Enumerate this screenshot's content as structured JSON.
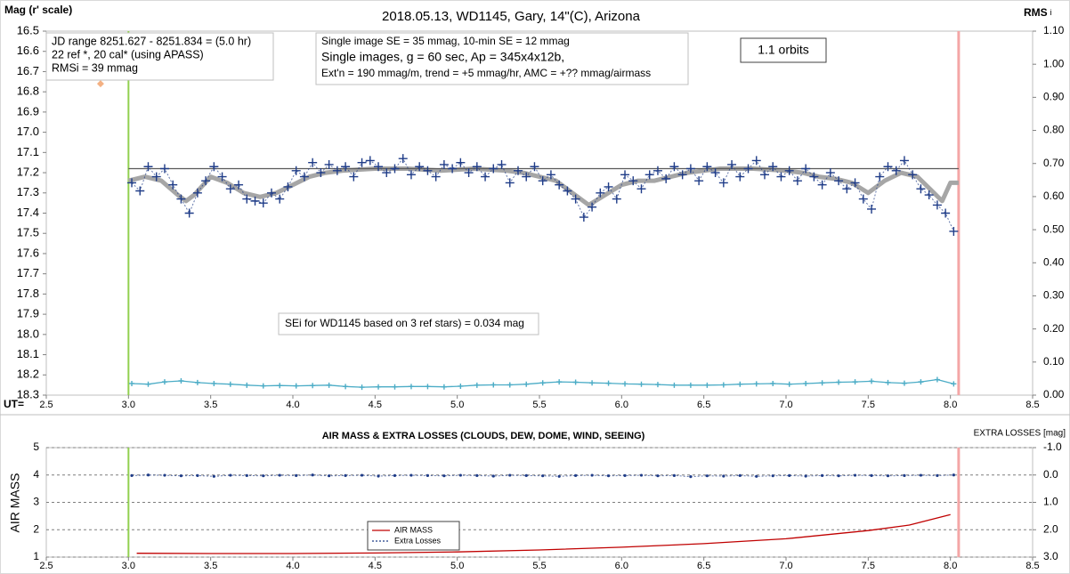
{
  "chart_data": [
    {
      "type": "scatter",
      "title": "2018.05.13,  WD1145, Gary, 14\"(C), Arizona",
      "y_label": "Mag (r' scale)",
      "y2_label": "RMS",
      "y2_label_sub": "i",
      "x_label": "UT=",
      "xlim": [
        2.5,
        8.5
      ],
      "xticks": [
        2.5,
        {
          "value": 3,
          "label": "3.0"
        },
        3.5,
        {
          "value": 4,
          "label": "4.0"
        },
        4.5,
        {
          "value": 5,
          "label": "5.0"
        },
        5.5,
        {
          "value": 6,
          "label": "6.0"
        },
        6.5,
        {
          "value": 7,
          "label": "7.0"
        },
        7.5,
        {
          "value": 8,
          "label": "8.0"
        },
        8.5
      ],
      "ylim": [
        18.3,
        16.5
      ],
      "yticks": [
        16.5,
        16.6,
        16.7,
        16.8,
        16.9,
        {
          "value": 17,
          "label": "17.0"
        },
        17.1,
        17.2,
        17.3,
        17.4,
        17.5,
        17.6,
        17.7,
        17.8,
        17.9,
        {
          "value": 18,
          "label": "18.0"
        },
        18.1,
        18.2,
        18.3
      ],
      "y2lim": [
        0,
        1.1
      ],
      "y2ticks": [
        {
          "value": 0,
          "label": "0.00"
        },
        {
          "value": 0.1,
          "label": "0.10"
        },
        {
          "value": 0.2,
          "label": "0.20"
        },
        {
          "value": 0.3,
          "label": "0.30"
        },
        {
          "value": 0.4,
          "label": "0.40"
        },
        {
          "value": 0.5,
          "label": "0.50"
        },
        {
          "value": 0.6,
          "label": "0.60"
        },
        {
          "value": 0.7,
          "label": "0.70"
        },
        {
          "value": 0.8,
          "label": "0.80"
        },
        {
          "value": 0.9,
          "label": "0.90"
        },
        {
          "value": 1,
          "label": "1.00"
        },
        {
          "value": 1.1,
          "label": "1.10"
        }
      ],
      "grid": false,
      "vlines": [
        {
          "x": 3.0,
          "color": "#92d050"
        },
        {
          "x": 8.05,
          "color": "#f4a6a6"
        }
      ],
      "annotations": {
        "info": [
          "JD range  8251.627 - 8251.834  = (5.0 hr)",
          "22 ref *, 20 cal* (using APASS)",
          "RMSi = 39 mmag"
        ],
        "setup": [
          "Single image SE = 35 mmag, 10-min SE = 12 mmag",
          "Single images, g = 60 sec, Ap = 345x4x12b,",
          "Ext'n = 190 mmag/m, trend = +5 mmag/hr, AMC = +?? mmag/airmass"
        ],
        "orbits": "1.1 orbits",
        "sei": "SEi for WD1145 based on 3 ref stars) = 0.034 mag"
      },
      "series": [
        {
          "color": "#a6a6a6",
          "marker": "none",
          "line": "thick",
          "x": [
            3.0,
            3.1,
            3.2,
            3.3,
            3.35,
            3.4,
            3.5,
            3.6,
            3.7,
            3.8,
            3.9,
            4.0,
            4.1,
            4.2,
            4.3,
            4.5,
            4.7,
            4.9,
            5.1,
            5.3,
            5.4,
            5.5,
            5.6,
            5.7,
            5.8,
            5.9,
            6.0,
            6.1,
            6.2,
            6.3,
            6.4,
            6.5,
            6.6,
            6.8,
            7.0,
            7.1,
            7.2,
            7.3,
            7.4,
            7.5,
            7.6,
            7.7,
            7.8,
            7.9,
            7.95,
            8.0,
            8.05
          ],
          "values": [
            17.24,
            17.22,
            17.24,
            17.31,
            17.34,
            17.31,
            17.22,
            17.25,
            17.3,
            17.32,
            17.3,
            17.26,
            17.22,
            17.2,
            17.19,
            17.18,
            17.18,
            17.19,
            17.18,
            17.19,
            17.2,
            17.22,
            17.24,
            17.3,
            17.36,
            17.31,
            17.26,
            17.24,
            17.24,
            17.22,
            17.2,
            17.19,
            17.18,
            17.18,
            17.19,
            17.2,
            17.22,
            17.23,
            17.25,
            17.3,
            17.24,
            17.2,
            17.22,
            17.3,
            17.34,
            17.25,
            17.25
          ]
        },
        {
          "color": "#595959",
          "marker": "none",
          "line": "solid",
          "x": [
            3.0,
            8.05
          ],
          "values": [
            17.18,
            17.18
          ]
        },
        {
          "color": "#1f3c88",
          "marker": "plus",
          "line": "dotted",
          "x": [
            3.02,
            3.07,
            3.12,
            3.17,
            3.22,
            3.27,
            3.32,
            3.37,
            3.42,
            3.47,
            3.52,
            3.57,
            3.62,
            3.67,
            3.72,
            3.77,
            3.82,
            3.87,
            3.92,
            3.97,
            4.02,
            4.07,
            4.12,
            4.17,
            4.22,
            4.27,
            4.32,
            4.37,
            4.42,
            4.47,
            4.52,
            4.57,
            4.62,
            4.67,
            4.72,
            4.77,
            4.82,
            4.87,
            4.92,
            4.97,
            5.02,
            5.07,
            5.12,
            5.17,
            5.22,
            5.27,
            5.32,
            5.37,
            5.42,
            5.47,
            5.52,
            5.57,
            5.62,
            5.67,
            5.72,
            5.77,
            5.82,
            5.87,
            5.92,
            5.97,
            6.02,
            6.07,
            6.12,
            6.17,
            6.22,
            6.27,
            6.32,
            6.37,
            6.42,
            6.47,
            6.52,
            6.57,
            6.62,
            6.67,
            6.72,
            6.77,
            6.82,
            6.87,
            6.92,
            6.97,
            7.02,
            7.07,
            7.12,
            7.17,
            7.22,
            7.27,
            7.32,
            7.37,
            7.42,
            7.47,
            7.52,
            7.57,
            7.62,
            7.67,
            7.72,
            7.77,
            7.82,
            7.87,
            7.92,
            7.97,
            8.02
          ],
          "values": [
            17.25,
            17.29,
            17.17,
            17.22,
            17.18,
            17.26,
            17.33,
            17.4,
            17.3,
            17.24,
            17.17,
            17.22,
            17.28,
            17.26,
            17.33,
            17.34,
            17.35,
            17.3,
            17.33,
            17.27,
            17.19,
            17.22,
            17.15,
            17.2,
            17.16,
            17.19,
            17.17,
            17.22,
            17.15,
            17.14,
            17.17,
            17.2,
            17.18,
            17.13,
            17.21,
            17.17,
            17.19,
            17.22,
            17.16,
            17.18,
            17.15,
            17.2,
            17.17,
            17.22,
            17.18,
            17.16,
            17.25,
            17.19,
            17.22,
            17.17,
            17.24,
            17.21,
            17.26,
            17.29,
            17.33,
            17.42,
            17.37,
            17.3,
            17.27,
            17.33,
            17.21,
            17.24,
            17.28,
            17.21,
            17.19,
            17.23,
            17.17,
            17.21,
            17.18,
            17.24,
            17.17,
            17.2,
            17.25,
            17.16,
            17.22,
            17.18,
            17.14,
            17.21,
            17.17,
            17.22,
            17.19,
            17.24,
            17.18,
            17.22,
            17.26,
            17.2,
            17.24,
            17.28,
            17.25,
            17.33,
            17.38,
            17.22,
            17.17,
            17.19,
            17.14,
            17.21,
            17.28,
            17.31,
            17.36,
            17.4,
            17.49
          ]
        },
        {
          "color": "#f4b183",
          "marker": "diamond",
          "line": "none",
          "x": [
            2.83
          ],
          "values": [
            16.76
          ]
        },
        {
          "color": "#4bacc6",
          "marker": "small-plus",
          "line": "solid",
          "axis": "y2",
          "x": [
            3.02,
            3.12,
            3.22,
            3.32,
            3.42,
            3.52,
            3.62,
            3.72,
            3.82,
            3.92,
            4.02,
            4.12,
            4.22,
            4.32,
            4.42,
            4.52,
            4.62,
            4.72,
            4.82,
            4.92,
            5.02,
            5.12,
            5.22,
            5.32,
            5.42,
            5.52,
            5.62,
            5.72,
            5.82,
            5.92,
            6.02,
            6.12,
            6.22,
            6.32,
            6.42,
            6.52,
            6.62,
            6.72,
            6.82,
            6.92,
            7.02,
            7.12,
            7.22,
            7.32,
            7.42,
            7.52,
            7.62,
            7.72,
            7.82,
            7.92,
            8.02
          ],
          "values": [
            0.035,
            0.033,
            0.04,
            0.043,
            0.038,
            0.035,
            0.033,
            0.03,
            0.028,
            0.029,
            0.028,
            0.029,
            0.03,
            0.026,
            0.024,
            0.025,
            0.025,
            0.026,
            0.026,
            0.025,
            0.027,
            0.03,
            0.031,
            0.031,
            0.033,
            0.037,
            0.04,
            0.039,
            0.037,
            0.036,
            0.034,
            0.033,
            0.032,
            0.03,
            0.03,
            0.03,
            0.031,
            0.033,
            0.034,
            0.035,
            0.033,
            0.035,
            0.037,
            0.039,
            0.04,
            0.042,
            0.038,
            0.036,
            0.04,
            0.047,
            0.034
          ]
        }
      ]
    },
    {
      "type": "line",
      "title": "AIR MASS & EXTRA LOSSES (CLOUDS, DEW, DOME, WIND, SEEING)",
      "y_label": "AIR MASS",
      "y2_label": "EXTRA LOSSES [mag]",
      "xlim": [
        2.5,
        8.5
      ],
      "xticks": [
        2.5,
        {
          "value": 3,
          "label": "3.0"
        },
        3.5,
        {
          "value": 4,
          "label": "4.0"
        },
        4.5,
        {
          "value": 5,
          "label": "5.0"
        },
        5.5,
        {
          "value": 6,
          "label": "6.0"
        },
        6.5,
        {
          "value": 7,
          "label": "7.0"
        },
        7.5,
        {
          "value": 8,
          "label": "8.0"
        },
        8.5
      ],
      "ylim": [
        1,
        5
      ],
      "yticks": [
        1,
        2,
        3,
        4,
        5
      ],
      "y2lim": [
        3,
        -1
      ],
      "y2ticks": [
        {
          "value": -1,
          "label": "-1.0"
        },
        {
          "value": 0,
          "label": "0.0"
        },
        {
          "value": 1,
          "label": "1.0"
        },
        {
          "value": 2,
          "label": "2.0"
        },
        {
          "value": 3,
          "label": "3.0"
        }
      ],
      "grid": true,
      "legend": "lower center",
      "vlines": [
        {
          "x": 3.0,
          "color": "#92d050"
        },
        {
          "x": 8.05,
          "color": "#f4a6a6"
        }
      ],
      "series": [
        {
          "name": "AIR MASS",
          "color": "#c00000",
          "marker": "none",
          "line": "solid",
          "x": [
            3.05,
            3.5,
            4.0,
            4.5,
            5.0,
            5.5,
            6.0,
            6.5,
            7.0,
            7.5,
            7.75,
            8.0
          ],
          "values": [
            1.14,
            1.13,
            1.13,
            1.15,
            1.19,
            1.26,
            1.36,
            1.49,
            1.67,
            1.97,
            2.17,
            2.55
          ]
        },
        {
          "name": "Extra Losses",
          "color": "#1f3c88",
          "marker": "dot",
          "line": "dotted",
          "axis": "y2",
          "x": [
            3.02,
            3.12,
            3.22,
            3.32,
            3.42,
            3.52,
            3.62,
            3.72,
            3.82,
            3.92,
            4.02,
            4.12,
            4.22,
            4.32,
            4.42,
            4.52,
            4.62,
            4.72,
            4.82,
            4.92,
            5.02,
            5.12,
            5.22,
            5.32,
            5.42,
            5.52,
            5.62,
            5.72,
            5.82,
            5.92,
            6.02,
            6.12,
            6.22,
            6.32,
            6.42,
            6.52,
            6.62,
            6.72,
            6.82,
            6.92,
            7.02,
            7.12,
            7.22,
            7.32,
            7.42,
            7.52,
            7.62,
            7.72,
            7.82,
            7.92,
            8.02
          ],
          "values": [
            0.02,
            0.0,
            0.01,
            0.03,
            0.02,
            0.05,
            0.01,
            0.02,
            0.03,
            0.01,
            0.02,
            0.0,
            0.03,
            0.02,
            0.01,
            0.04,
            0.02,
            0.01,
            0.02,
            0.03,
            0.01,
            0.02,
            0.04,
            0.01,
            0.02,
            0.03,
            0.05,
            0.02,
            0.01,
            0.03,
            0.02,
            0.01,
            0.03,
            0.02,
            0.06,
            0.03,
            0.04,
            0.02,
            0.05,
            0.03,
            0.02,
            0.04,
            0.02,
            0.03,
            0.01,
            0.02,
            0.03,
            0.02,
            0.01,
            0.02,
            0.0
          ]
        }
      ]
    }
  ]
}
